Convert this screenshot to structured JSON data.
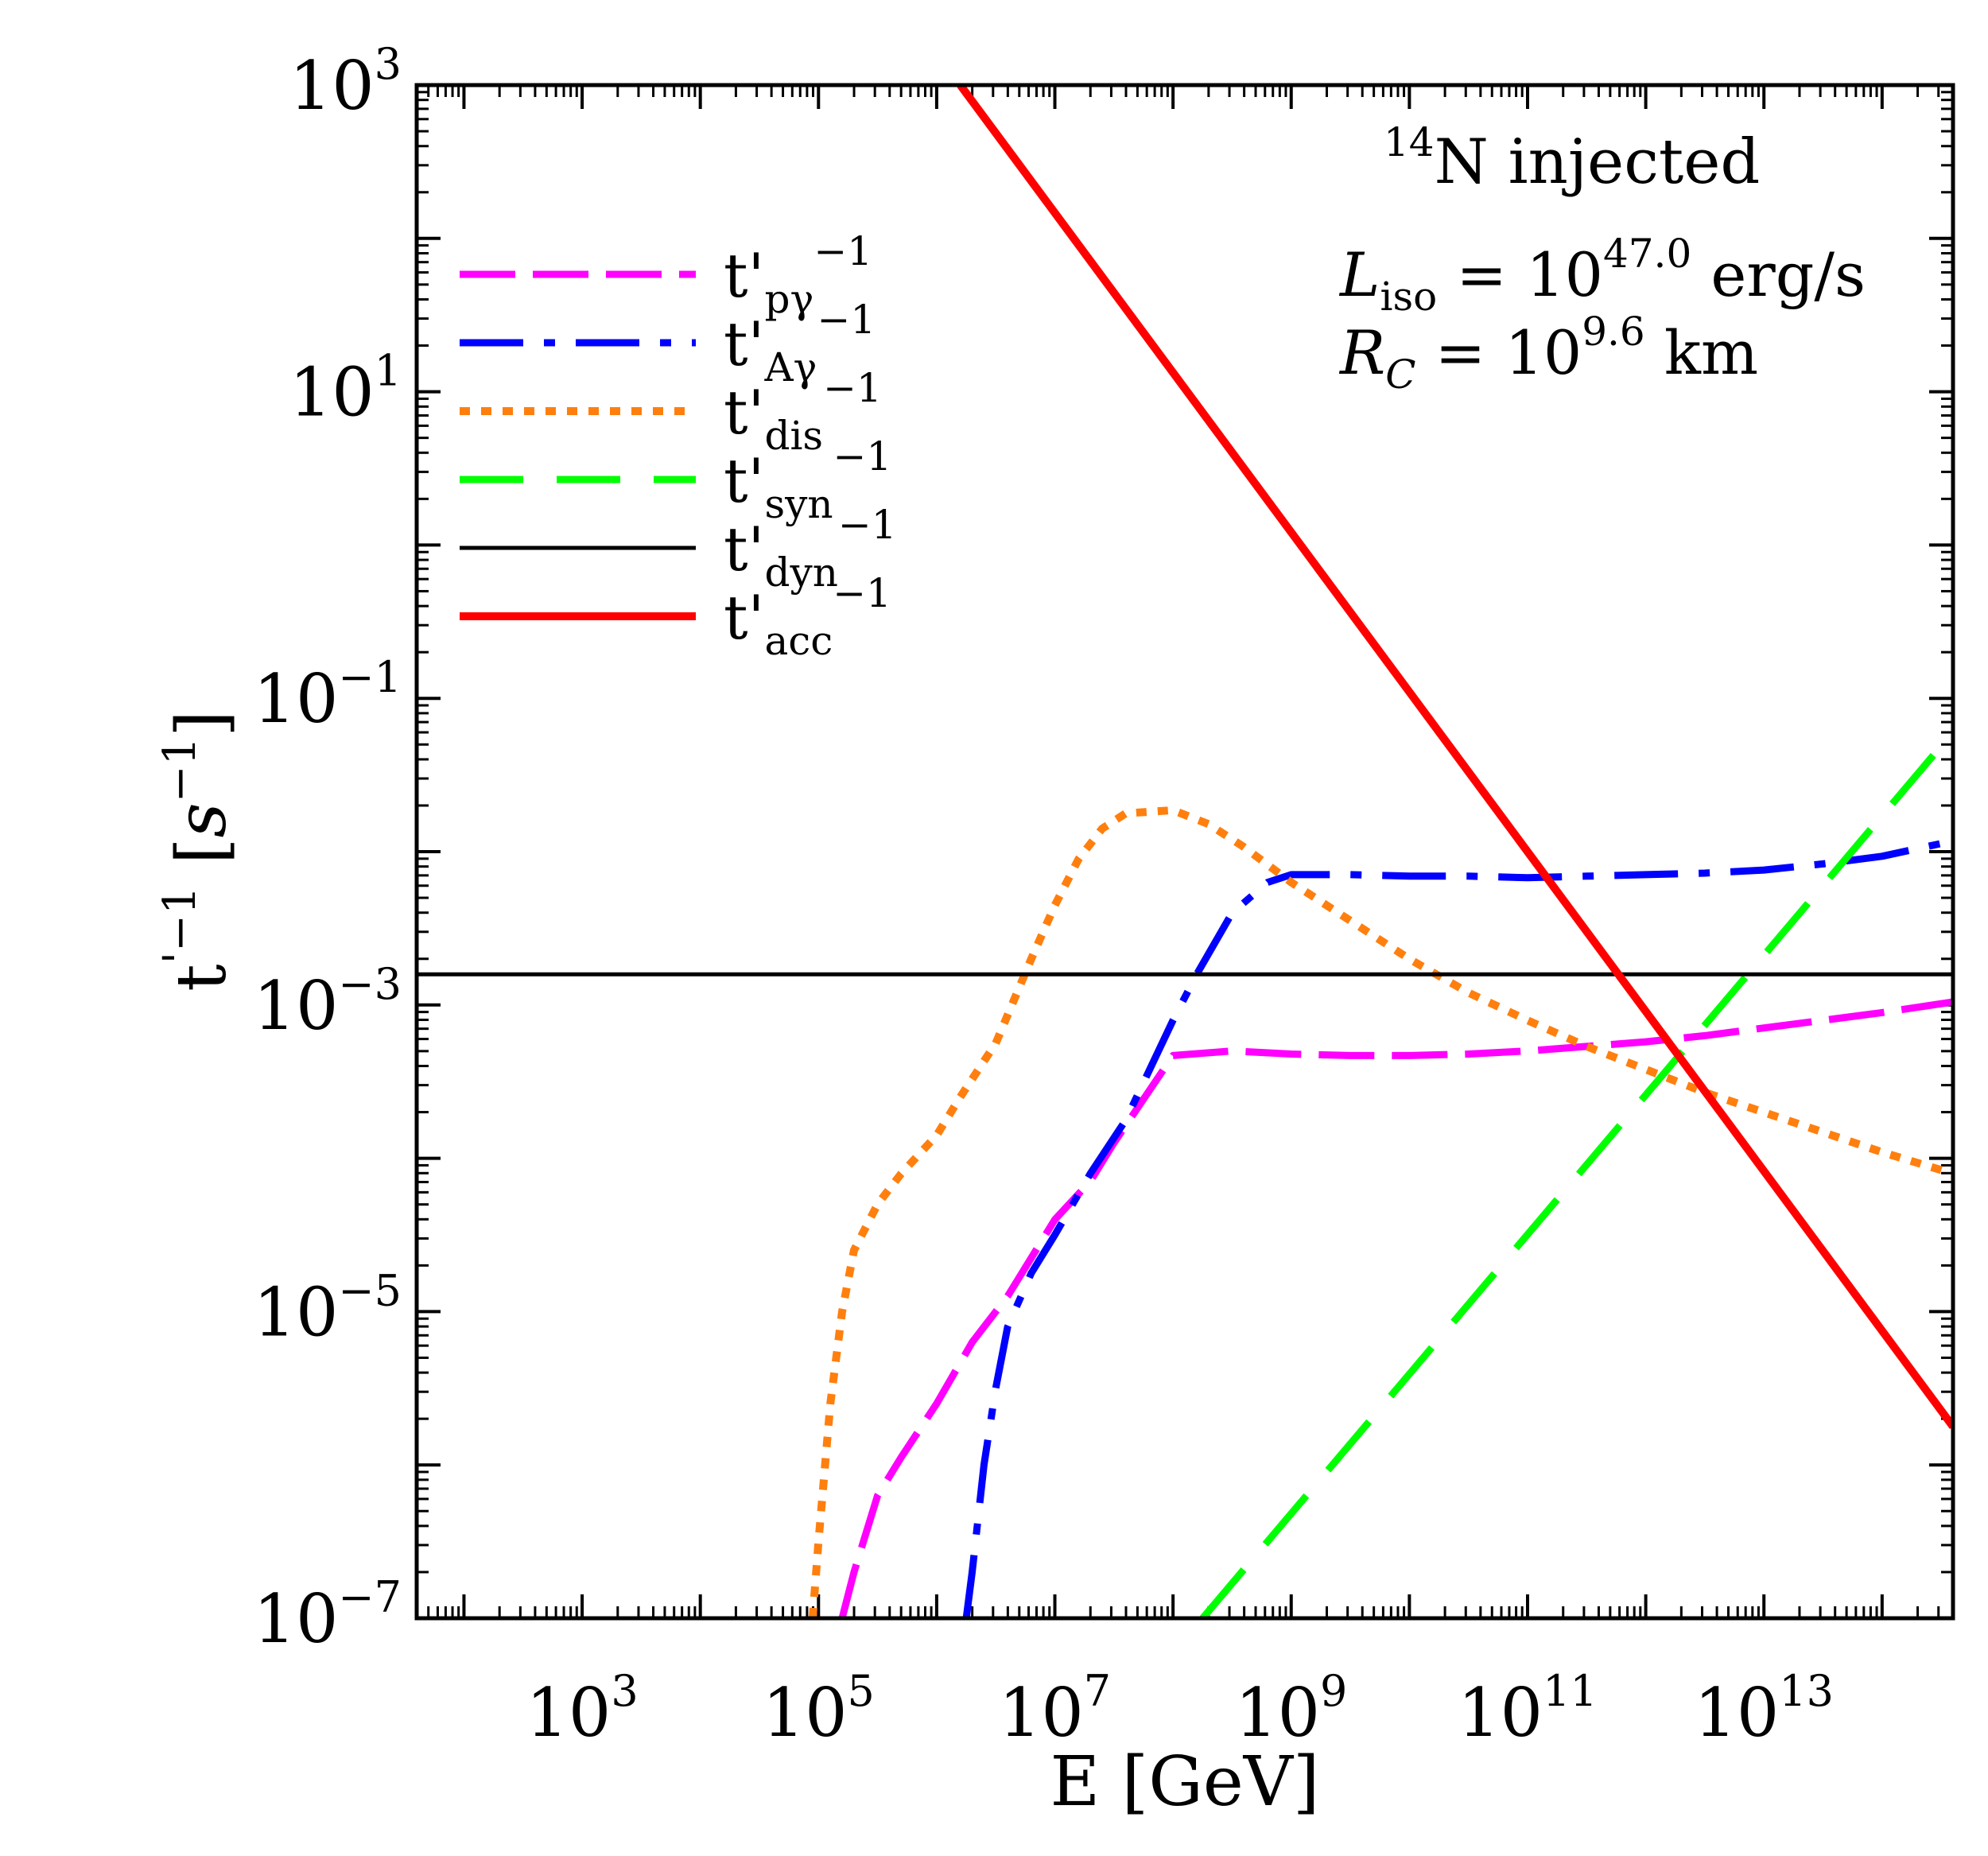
{
  "chart_data": {
    "type": "line",
    "title": "",
    "xlabel": "E [GeV]",
    "ylabel": "t'^{-1} [s^{-1}]",
    "x_scale": "log",
    "y_scale": "log",
    "xlim_log10": [
      1.6,
      14.6
    ],
    "ylim_log10": [
      -7,
      3
    ],
    "xtick_labels": [
      {
        "base": "10",
        "exp": "3",
        "log": 3
      },
      {
        "base": "10",
        "exp": "5",
        "log": 5
      },
      {
        "base": "10",
        "exp": "7",
        "log": 7
      },
      {
        "base": "10",
        "exp": "9",
        "log": 9
      },
      {
        "base": "10",
        "exp": "11",
        "log": 11
      },
      {
        "base": "10",
        "exp": "13",
        "log": 13
      }
    ],
    "ytick_labels": [
      {
        "base": "10",
        "exp": "3",
        "log": 3
      },
      {
        "base": "10",
        "exp": "1",
        "log": 1
      },
      {
        "base": "10",
        "exp": "−1",
        "log": -1
      },
      {
        "base": "10",
        "exp": "−3",
        "log": -3
      },
      {
        "base": "10",
        "exp": "−5",
        "log": -5
      },
      {
        "base": "10",
        "exp": "−7",
        "log": -7
      }
    ],
    "annotation": {
      "species_sup": "14",
      "species_text": "N injected",
      "liso_symbol": "L",
      "liso_sub": "iso",
      "liso_eq": " = 10",
      "liso_exp": "47.0",
      "liso_unit": " erg/s",
      "rc_symbol": "R",
      "rc_sub": "C",
      "rc_eq": " = 10",
      "rc_exp": "9.6",
      "rc_unit": " km"
    },
    "series": [
      {
        "name": "t'pγ^-1",
        "main": "t'",
        "sub": "pγ",
        "sup": "−1",
        "color": "#ff00ff",
        "dash": "70 22",
        "width": 9,
        "log_x": [
          5.2,
          5.3,
          5.5,
          5.7,
          6.0,
          6.3,
          6.6,
          7.0,
          7.3,
          7.5,
          8.0,
          8.5,
          9.0,
          9.5,
          10.0,
          10.5,
          11.0,
          11.5,
          12.0,
          12.5,
          13.0,
          13.5,
          14.0,
          14.6
        ],
        "log_y": [
          -7.0,
          -6.7,
          -6.2,
          -5.95,
          -5.6,
          -5.2,
          -4.9,
          -4.4,
          -4.15,
          -3.9,
          -3.33,
          -3.3,
          -3.32,
          -3.33,
          -3.33,
          -3.32,
          -3.3,
          -3.27,
          -3.24,
          -3.2,
          -3.15,
          -3.1,
          -3.05,
          -2.98
        ]
      },
      {
        "name": "t'Aγ^-1",
        "main": "t'",
        "sub": "Aγ",
        "sup": "−1",
        "color": "#0000ff",
        "dash": "80 26 14 26",
        "width": 9,
        "log_x": [
          6.25,
          6.3,
          6.4,
          6.5,
          6.6,
          6.8,
          7.0,
          7.3,
          7.6,
          8.0,
          8.2,
          8.5,
          8.8,
          9.0,
          9.5,
          10.0,
          10.5,
          11.0,
          11.5,
          12.0,
          12.5,
          13.0,
          13.5,
          14.0,
          14.6
        ],
        "log_y": [
          -7.0,
          -6.7,
          -6.0,
          -5.5,
          -5.1,
          -4.75,
          -4.5,
          -4.1,
          -3.75,
          -3.1,
          -2.8,
          -2.4,
          -2.2,
          -2.15,
          -2.15,
          -2.16,
          -2.16,
          -2.17,
          -2.16,
          -2.15,
          -2.14,
          -2.12,
          -2.08,
          -2.03,
          -1.93
        ]
      },
      {
        "name": "t'dis^-1",
        "main": "t'",
        "sub": "dis",
        "sup": "−1",
        "color": "#ff7f0e",
        "dash": "13 14",
        "width": 10,
        "log_x": [
          4.95,
          5.0,
          5.1,
          5.2,
          5.3,
          5.5,
          5.7,
          6.0,
          6.2,
          6.5,
          6.8,
          7.0,
          7.2,
          7.4,
          7.6,
          8.0,
          8.3,
          8.6,
          9.0,
          9.5,
          10.0,
          10.5,
          11.0,
          11.5,
          12.0,
          12.5,
          13.0,
          13.5,
          14.0,
          14.6
        ],
        "log_y": [
          -7.0,
          -6.5,
          -5.6,
          -5.0,
          -4.6,
          -4.3,
          -4.1,
          -3.85,
          -3.6,
          -3.25,
          -2.7,
          -2.35,
          -2.05,
          -1.85,
          -1.75,
          -1.73,
          -1.82,
          -1.97,
          -2.2,
          -2.45,
          -2.7,
          -2.92,
          -3.1,
          -3.27,
          -3.42,
          -3.57,
          -3.7,
          -3.83,
          -3.96,
          -4.1
        ]
      },
      {
        "name": "t'syn^-1",
        "main": "t'",
        "sub": "syn",
        "sup": "−1",
        "color": "#00ff00",
        "dash": "80 42",
        "width": 9,
        "log_x": [
          8.25,
          14.6
        ],
        "log_y": [
          -7.0,
          -1.22
        ]
      },
      {
        "name": "t'dyn^-1",
        "main": "t'",
        "sub": "dyn",
        "sup": "−1",
        "color": "#000000",
        "dash": "",
        "width": 5,
        "log_x": [
          1.6,
          14.6
        ],
        "log_y": [
          -2.8,
          -2.8
        ]
      },
      {
        "name": "t'acc^-1",
        "main": "t'",
        "sub": "acc",
        "sup": "−1",
        "color": "#ff0000",
        "dash": "",
        "width": 10,
        "log_x": [
          6.2,
          14.6
        ],
        "log_y": [
          3.0,
          -5.75
        ]
      }
    ]
  }
}
